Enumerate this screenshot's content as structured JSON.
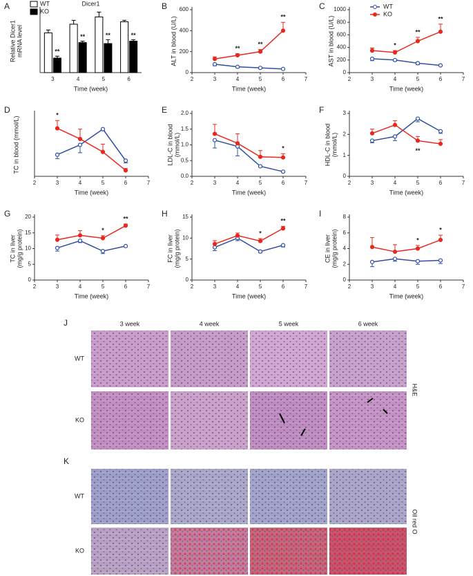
{
  "chart_data": [
    {
      "type": "bar",
      "label": "A",
      "title": "Dicer1",
      "ylabel": [
        "Relative Dicer1",
        "mRNA level"
      ],
      "xlabel": "Time (week)",
      "categories": [
        "3",
        "4",
        "5",
        "6"
      ],
      "ylim": [
        0,
        1.3
      ],
      "legend": "upper left",
      "series": [
        {
          "name": "WT",
          "color": "#ffffff",
          "values": [
            0.82,
            1.0,
            1.15,
            1.05
          ],
          "errors": [
            0.06,
            0.08,
            0.1,
            0.03
          ]
        },
        {
          "name": "KO",
          "color": "#000000",
          "values": [
            0.3,
            0.62,
            0.6,
            0.65
          ],
          "errors": [
            0.04,
            0.03,
            0.08,
            0.03
          ]
        }
      ],
      "annotations": [
        "**",
        "**",
        "**",
        "**"
      ]
    },
    {
      "type": "line",
      "label": "B",
      "ylabel": [
        "ALT in blood (U/L)"
      ],
      "xlabel": "Time (week)",
      "x": [
        3,
        4,
        5,
        6
      ],
      "xlim": [
        2,
        7
      ],
      "xticks": [
        2,
        3,
        4,
        5,
        6,
        7
      ],
      "ylim": [
        0,
        600
      ],
      "yticks": [
        0,
        200,
        400,
        600
      ],
      "series": [
        {
          "name": "WT",
          "color": "#2e4fa3",
          "values": [
            80,
            55,
            45,
            35
          ],
          "errors": [
            15,
            8,
            6,
            5
          ]
        },
        {
          "name": "KO",
          "color": "#e8281e",
          "values": [
            130,
            165,
            200,
            400
          ],
          "errors": [
            20,
            15,
            20,
            80
          ]
        }
      ],
      "annotations": [
        null,
        "**",
        "**",
        "**"
      ]
    },
    {
      "type": "line",
      "label": "C",
      "ylabel": [
        "AST in blood (U/L)"
      ],
      "xlabel": "Time (week)",
      "legend": "upper left",
      "x": [
        3,
        4,
        5,
        6
      ],
      "xlim": [
        2,
        7
      ],
      "xticks": [
        2,
        3,
        4,
        5,
        6,
        7
      ],
      "ylim": [
        0,
        1000
      ],
      "yticks": [
        0,
        200,
        400,
        600,
        800,
        1000
      ],
      "series": [
        {
          "name": "WT",
          "color": "#2e4fa3",
          "values": [
            220,
            200,
            150,
            115
          ],
          "errors": [
            30,
            20,
            25,
            10
          ]
        },
        {
          "name": "KO",
          "color": "#e8281e",
          "values": [
            350,
            320,
            500,
            650
          ],
          "errors": [
            40,
            30,
            60,
            120
          ]
        }
      ],
      "annotations": [
        null,
        "*",
        "**",
        "**"
      ]
    },
    {
      "type": "line",
      "label": "D",
      "ylabel": [
        "TC in blood (mmol/L)"
      ],
      "xlabel": "Time (week)",
      "x": [
        3,
        4,
        5,
        6
      ],
      "xlim": [
        2,
        7
      ],
      "xticks": [
        2,
        3,
        4,
        5,
        6,
        7
      ],
      "ylim": [
        1.8,
        3.4
      ],
      "series": [
        {
          "name": "WT",
          "color": "#2e4fa3",
          "values": [
            2.35,
            2.6,
            3.0,
            2.2
          ],
          "errors": [
            0.1,
            0.2,
            0.04,
            0.06
          ]
        },
        {
          "name": "KO",
          "color": "#e8281e",
          "values": [
            3.02,
            2.75,
            2.42,
            1.95
          ],
          "errors": [
            0.2,
            0.25,
            0.2,
            0.05
          ]
        }
      ],
      "annotations": [
        "*",
        null,
        null,
        null
      ]
    },
    {
      "type": "line",
      "label": "E",
      "ylabel": [
        "LDL-C in blood",
        "(mmol/L)"
      ],
      "xlabel": "Time (week)",
      "x": [
        3,
        4,
        5,
        6
      ],
      "xlim": [
        2,
        7
      ],
      "xticks": [
        2,
        3,
        4,
        5,
        6,
        7
      ],
      "ylim": [
        0,
        2
      ],
      "yticks": [
        {
          "value": 0,
          "label": "0.0"
        },
        {
          "value": 0.5,
          "label": "0.5"
        },
        {
          "value": 1,
          "label": "1.0"
        },
        {
          "value": 1.5,
          "label": "1.5"
        },
        {
          "value": 2,
          "label": "2.0"
        }
      ],
      "series": [
        {
          "name": "WT",
          "color": "#2e4fa3",
          "values": [
            1.15,
            0.95,
            0.32,
            0.15
          ],
          "errors": [
            0.25,
            0.3,
            0.03,
            0.02
          ]
        },
        {
          "name": "KO",
          "color": "#e8281e",
          "values": [
            1.35,
            1.05,
            0.62,
            0.6
          ],
          "errors": [
            0.3,
            0.3,
            0.2,
            0.12
          ]
        }
      ],
      "annotations": [
        null,
        null,
        null,
        "*"
      ]
    },
    {
      "type": "line",
      "label": "F",
      "ylabel": [
        "HDL-C in blood",
        "(mmol/L)"
      ],
      "xlabel": "Time (week)",
      "x": [
        3,
        4,
        5,
        6
      ],
      "xlim": [
        2,
        7
      ],
      "xticks": [
        2,
        3,
        4,
        5,
        6,
        7
      ],
      "ylim": [
        0,
        3
      ],
      "yticks": [
        0,
        1,
        2,
        3
      ],
      "series": [
        {
          "name": "WT",
          "color": "#2e4fa3",
          "values": [
            1.7,
            1.9,
            2.75,
            2.15
          ],
          "errors": [
            0.1,
            0.2,
            0.15,
            0.1
          ]
        },
        {
          "name": "KO",
          "color": "#e8281e",
          "values": [
            2.05,
            2.45,
            1.7,
            1.55
          ],
          "errors": [
            0.2,
            0.2,
            0.2,
            0.2
          ]
        }
      ],
      "annotations": [
        null,
        null,
        "**",
        null
      ]
    },
    {
      "type": "line",
      "label": "G",
      "ylabel": [
        "TC in liver",
        "(mg/g protein)"
      ],
      "xlabel": "Time (week)",
      "x": [
        3,
        4,
        5,
        6
      ],
      "xlim": [
        2,
        7
      ],
      "xticks": [
        2,
        3,
        4,
        5,
        6,
        7
      ],
      "ylim": [
        0,
        20
      ],
      "yticks": [
        0,
        5,
        10,
        15,
        20
      ],
      "series": [
        {
          "name": "WT",
          "color": "#2e4fa3",
          "values": [
            10.2,
            12.5,
            9.2,
            10.8
          ],
          "errors": [
            1.0,
            0.6,
            0.8,
            0.3
          ]
        },
        {
          "name": "KO",
          "color": "#e8281e",
          "values": [
            12.8,
            14.2,
            13.3,
            17.3
          ],
          "errors": [
            1.5,
            1.5,
            0.8,
            0.5
          ]
        }
      ],
      "annotations": [
        null,
        null,
        "*",
        "**"
      ]
    },
    {
      "type": "line",
      "label": "H",
      "ylabel": [
        "FC in liver",
        "(mg/g protein)"
      ],
      "xlabel": "Time (week)",
      "x": [
        3,
        4,
        5,
        6
      ],
      "xlim": [
        2,
        7
      ],
      "xticks": [
        2,
        3,
        4,
        5,
        6,
        7
      ],
      "ylim": [
        0,
        15
      ],
      "yticks": [
        0,
        5,
        10,
        15
      ],
      "series": [
        {
          "name": "WT",
          "color": "#2e4fa3",
          "values": [
            7.8,
            10.0,
            6.8,
            8.3
          ],
          "errors": [
            0.8,
            0.6,
            0.3,
            0.4
          ]
        },
        {
          "name": "KO",
          "color": "#e8281e",
          "values": [
            8.6,
            10.6,
            9.3,
            12.3
          ],
          "errors": [
            0.8,
            0.6,
            0.6,
            0.5
          ]
        }
      ],
      "annotations": [
        null,
        null,
        "*",
        "**"
      ]
    },
    {
      "type": "line",
      "label": "I",
      "ylabel": [
        "CE in liver",
        "(mg/g protein)"
      ],
      "xlabel": "Time (week)",
      "x": [
        3,
        4,
        5,
        6
      ],
      "xlim": [
        2,
        7
      ],
      "xticks": [
        2,
        3,
        4,
        5,
        6,
        7
      ],
      "ylim": [
        0,
        8
      ],
      "yticks": [
        0,
        2,
        4,
        6,
        8
      ],
      "series": [
        {
          "name": "WT",
          "color": "#2e4fa3",
          "values": [
            2.3,
            2.7,
            2.4,
            2.5
          ],
          "errors": [
            0.6,
            0.3,
            0.4,
            0.4
          ]
        },
        {
          "name": "KO",
          "color": "#e8281e",
          "values": [
            4.2,
            3.6,
            4.0,
            5.1
          ],
          "errors": [
            1.2,
            0.9,
            0.4,
            0.6
          ]
        }
      ],
      "annotations": [
        null,
        null,
        "*",
        "*"
      ]
    }
  ],
  "micrographs": [
    {
      "label": "J",
      "stain": "H&E",
      "columns": [
        "3   week",
        "4 week",
        "5 week",
        "6 week"
      ],
      "rows": [
        "WT",
        "KO"
      ]
    },
    {
      "label": "K",
      "stain": "Oil red O",
      "rows": [
        "WT",
        "KO"
      ]
    }
  ]
}
